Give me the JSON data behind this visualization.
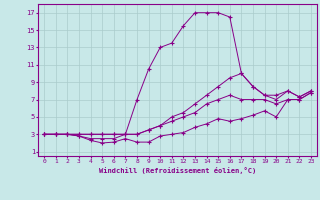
{
  "xlabel": "Windchill (Refroidissement éolien,°C)",
  "bg_color": "#c8e8e8",
  "line_color": "#880088",
  "grid_color": "#aacccc",
  "xlim": [
    -0.5,
    23.5
  ],
  "ylim": [
    0.5,
    18
  ],
  "xticks": [
    0,
    1,
    2,
    3,
    4,
    5,
    6,
    7,
    8,
    9,
    10,
    11,
    12,
    13,
    14,
    15,
    16,
    17,
    18,
    19,
    20,
    21,
    22,
    23
  ],
  "yticks": [
    1,
    3,
    5,
    7,
    9,
    11,
    13,
    15,
    17
  ],
  "line1_x": [
    0,
    1,
    2,
    3,
    4,
    5,
    6,
    7,
    8,
    9,
    10,
    11,
    12,
    13,
    14,
    15,
    16,
    17,
    18,
    19,
    20,
    21,
    22,
    23
  ],
  "line1_y": [
    3,
    3,
    3,
    2.8,
    2.3,
    2.0,
    2.1,
    2.5,
    2.1,
    2.1,
    2.8,
    3.0,
    3.2,
    3.8,
    4.2,
    4.8,
    4.5,
    4.8,
    5.2,
    5.7,
    5.0,
    7.0,
    7.0,
    7.8
  ],
  "line2_x": [
    0,
    1,
    2,
    3,
    4,
    5,
    6,
    7,
    8,
    9,
    10,
    11,
    12,
    13,
    14,
    15,
    16,
    17,
    18,
    19,
    20,
    21,
    22,
    23
  ],
  "line2_y": [
    3,
    3,
    3,
    2.8,
    2.5,
    2.5,
    2.5,
    3.0,
    7.0,
    10.5,
    13.0,
    13.5,
    15.5,
    17.0,
    17.0,
    17.0,
    16.5,
    10.0,
    8.5,
    7.5,
    7.0,
    8.0,
    7.3,
    8.0
  ],
  "line3_x": [
    0,
    1,
    2,
    3,
    4,
    5,
    6,
    7,
    8,
    9,
    10,
    11,
    12,
    13,
    14,
    15,
    16,
    17,
    18,
    19,
    20,
    21,
    22,
    23
  ],
  "line3_y": [
    3,
    3,
    3,
    3,
    3,
    3,
    3,
    3,
    3,
    3.5,
    4.0,
    5.0,
    5.5,
    6.5,
    7.5,
    8.5,
    9.5,
    10.0,
    8.5,
    7.5,
    7.5,
    8.0,
    7.3,
    8.0
  ],
  "line4_x": [
    0,
    1,
    2,
    3,
    4,
    5,
    6,
    7,
    8,
    9,
    10,
    11,
    12,
    13,
    14,
    15,
    16,
    17,
    18,
    19,
    20,
    21,
    22,
    23
  ],
  "line4_y": [
    3,
    3,
    3,
    3,
    3,
    3,
    3,
    3,
    3,
    3.5,
    4.0,
    4.5,
    5.0,
    5.5,
    6.5,
    7.0,
    7.5,
    7.0,
    7.0,
    7.0,
    6.5,
    7.0,
    7.0,
    7.8
  ]
}
